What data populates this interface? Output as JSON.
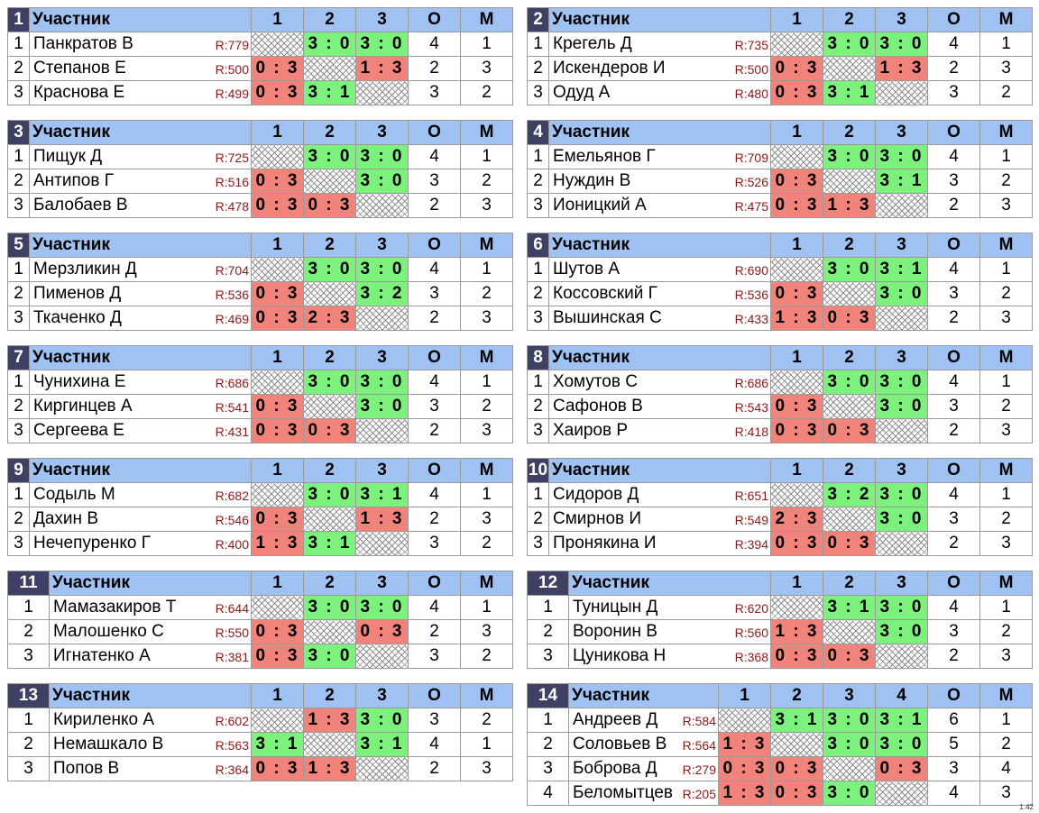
{
  "labels": {
    "participant": "Участник",
    "points": "О",
    "place": "М"
  },
  "version": "1.42",
  "groups": [
    {
      "num": "1",
      "cols": [
        "1",
        "2",
        "3"
      ],
      "rows": [
        {
          "idx": "1",
          "name": "Панкратов В",
          "rating": "R:779",
          "cells": [
            null,
            "3 : 0",
            "3 : 0"
          ],
          "points": "4",
          "place": "1"
        },
        {
          "idx": "2",
          "name": "Степанов Е",
          "rating": "R:500",
          "cells": [
            "0 : 3",
            null,
            "1 : 3"
          ],
          "points": "2",
          "place": "3"
        },
        {
          "idx": "3",
          "name": "Краснова Е",
          "rating": "R:499",
          "cells": [
            "0 : 3",
            "3 : 1",
            null
          ],
          "points": "3",
          "place": "2"
        }
      ]
    },
    {
      "num": "2",
      "cols": [
        "1",
        "2",
        "3"
      ],
      "rows": [
        {
          "idx": "1",
          "name": "Крегель Д",
          "rating": "R:735",
          "cells": [
            null,
            "3 : 0",
            "3 : 0"
          ],
          "points": "4",
          "place": "1"
        },
        {
          "idx": "2",
          "name": "Искендеров И",
          "rating": "R:500",
          "cells": [
            "0 : 3",
            null,
            "1 : 3"
          ],
          "points": "2",
          "place": "3"
        },
        {
          "idx": "3",
          "name": "Одуд А",
          "rating": "R:480",
          "cells": [
            "0 : 3",
            "3 : 1",
            null
          ],
          "points": "3",
          "place": "2"
        }
      ]
    },
    {
      "num": "3",
      "cols": [
        "1",
        "2",
        "3"
      ],
      "rows": [
        {
          "idx": "1",
          "name": "Пищук Д",
          "rating": "R:725",
          "cells": [
            null,
            "3 : 0",
            "3 : 0"
          ],
          "points": "4",
          "place": "1"
        },
        {
          "idx": "2",
          "name": "Антипов Г",
          "rating": "R:516",
          "cells": [
            "0 : 3",
            null,
            "3 : 0"
          ],
          "points": "3",
          "place": "2"
        },
        {
          "idx": "3",
          "name": "Балобаев В",
          "rating": "R:478",
          "cells": [
            "0 : 3",
            "0 : 3",
            null
          ],
          "points": "2",
          "place": "3"
        }
      ]
    },
    {
      "num": "4",
      "cols": [
        "1",
        "2",
        "3"
      ],
      "rows": [
        {
          "idx": "1",
          "name": "Емельянов Г",
          "rating": "R:709",
          "cells": [
            null,
            "3 : 0",
            "3 : 0"
          ],
          "points": "4",
          "place": "1"
        },
        {
          "idx": "2",
          "name": "Нуждин В",
          "rating": "R:526",
          "cells": [
            "0 : 3",
            null,
            "3 : 1"
          ],
          "points": "3",
          "place": "2"
        },
        {
          "idx": "3",
          "name": "Ионицкий А",
          "rating": "R:475",
          "cells": [
            "0 : 3",
            "1 : 3",
            null
          ],
          "points": "2",
          "place": "3"
        }
      ]
    },
    {
      "num": "5",
      "cols": [
        "1",
        "2",
        "3"
      ],
      "rows": [
        {
          "idx": "1",
          "name": "Мерзликин Д",
          "rating": "R:704",
          "cells": [
            null,
            "3 : 0",
            "3 : 0"
          ],
          "points": "4",
          "place": "1"
        },
        {
          "idx": "2",
          "name": "Пименов Д",
          "rating": "R:536",
          "cells": [
            "0 : 3",
            null,
            "3 : 2"
          ],
          "points": "3",
          "place": "2"
        },
        {
          "idx": "3",
          "name": "Ткаченко Д",
          "rating": "R:469",
          "cells": [
            "0 : 3",
            "2 : 3",
            null
          ],
          "points": "2",
          "place": "3"
        }
      ]
    },
    {
      "num": "6",
      "cols": [
        "1",
        "2",
        "3"
      ],
      "rows": [
        {
          "idx": "1",
          "name": "Шутов А",
          "rating": "R:690",
          "cells": [
            null,
            "3 : 0",
            "3 : 1"
          ],
          "points": "4",
          "place": "1"
        },
        {
          "idx": "2",
          "name": "Коссовский Г",
          "rating": "R:536",
          "cells": [
            "0 : 3",
            null,
            "3 : 0"
          ],
          "points": "3",
          "place": "2"
        },
        {
          "idx": "3",
          "name": "Вышинская С",
          "rating": "R:433",
          "cells": [
            "1 : 3",
            "0 : 3",
            null
          ],
          "points": "2",
          "place": "3"
        }
      ]
    },
    {
      "num": "7",
      "cols": [
        "1",
        "2",
        "3"
      ],
      "rows": [
        {
          "idx": "1",
          "name": "Чунихина Е",
          "rating": "R:686",
          "cells": [
            null,
            "3 : 0",
            "3 : 0"
          ],
          "points": "4",
          "place": "1"
        },
        {
          "idx": "2",
          "name": "Киргинцев А",
          "rating": "R:541",
          "cells": [
            "0 : 3",
            null,
            "3 : 0"
          ],
          "points": "3",
          "place": "2"
        },
        {
          "idx": "3",
          "name": "Сергеева Е",
          "rating": "R:431",
          "cells": [
            "0 : 3",
            "0 : 3",
            null
          ],
          "points": "2",
          "place": "3"
        }
      ]
    },
    {
      "num": "8",
      "cols": [
        "1",
        "2",
        "3"
      ],
      "rows": [
        {
          "idx": "1",
          "name": "Хомутов С",
          "rating": "R:686",
          "cells": [
            null,
            "3 : 0",
            "3 : 0"
          ],
          "points": "4",
          "place": "1"
        },
        {
          "idx": "2",
          "name": "Сафонов В",
          "rating": "R:543",
          "cells": [
            "0 : 3",
            null,
            "3 : 0"
          ],
          "points": "3",
          "place": "2"
        },
        {
          "idx": "3",
          "name": "Хаиров Р",
          "rating": "R:418",
          "cells": [
            "0 : 3",
            "0 : 3",
            null
          ],
          "points": "2",
          "place": "3"
        }
      ]
    },
    {
      "num": "9",
      "cols": [
        "1",
        "2",
        "3"
      ],
      "rows": [
        {
          "idx": "1",
          "name": "Содыль М",
          "rating": "R:682",
          "cells": [
            null,
            "3 : 0",
            "3 : 1"
          ],
          "points": "4",
          "place": "1"
        },
        {
          "idx": "2",
          "name": "Дахин В",
          "rating": "R:546",
          "cells": [
            "0 : 3",
            null,
            "1 : 3"
          ],
          "points": "2",
          "place": "3"
        },
        {
          "idx": "3",
          "name": "Нечепуренко Г",
          "rating": "R:400",
          "cells": [
            "1 : 3",
            "3 : 1",
            null
          ],
          "points": "3",
          "place": "2"
        }
      ]
    },
    {
      "num": "10",
      "cols": [
        "1",
        "2",
        "3"
      ],
      "rows": [
        {
          "idx": "1",
          "name": "Сидоров Д",
          "rating": "R:651",
          "cells": [
            null,
            "3 : 2",
            "3 : 0"
          ],
          "points": "4",
          "place": "1"
        },
        {
          "idx": "2",
          "name": "Смирнов И",
          "rating": "R:549",
          "cells": [
            "2 : 3",
            null,
            "3 : 0"
          ],
          "points": "3",
          "place": "2"
        },
        {
          "idx": "3",
          "name": "Пронякина И",
          "rating": "R:394",
          "cells": [
            "0 : 3",
            "0 : 3",
            null
          ],
          "points": "2",
          "place": "3"
        }
      ]
    },
    {
      "num": "11",
      "cols": [
        "1",
        "2",
        "3"
      ],
      "rows": [
        {
          "idx": "1",
          "name": "Мамазакиров Т",
          "rating": "R:644",
          "cells": [
            null,
            "3 : 0",
            "3 : 0"
          ],
          "points": "4",
          "place": "1"
        },
        {
          "idx": "2",
          "name": "Малошенко С",
          "rating": "R:550",
          "cells": [
            "0 : 3",
            null,
            "0 : 3"
          ],
          "points": "2",
          "place": "3"
        },
        {
          "idx": "3",
          "name": "Игнатенко А",
          "rating": "R:381",
          "cells": [
            "0 : 3",
            "3 : 0",
            null
          ],
          "points": "3",
          "place": "2"
        }
      ]
    },
    {
      "num": "12",
      "cols": [
        "1",
        "2",
        "3"
      ],
      "rows": [
        {
          "idx": "1",
          "name": "Туницын Д",
          "rating": "R:620",
          "cells": [
            null,
            "3 : 1",
            "3 : 0"
          ],
          "points": "4",
          "place": "1"
        },
        {
          "idx": "2",
          "name": "Воронин В",
          "rating": "R:560",
          "cells": [
            "1 : 3",
            null,
            "3 : 0"
          ],
          "points": "3",
          "place": "2"
        },
        {
          "idx": "3",
          "name": "Цуникова Н",
          "rating": "R:368",
          "cells": [
            "0 : 3",
            "0 : 3",
            null
          ],
          "points": "2",
          "place": "3"
        }
      ]
    },
    {
      "num": "13",
      "cols": [
        "1",
        "2",
        "3"
      ],
      "rows": [
        {
          "idx": "1",
          "name": "Кириленко А",
          "rating": "R:602",
          "cells": [
            null,
            "1 : 3",
            "3 : 0"
          ],
          "points": "3",
          "place": "2"
        },
        {
          "idx": "2",
          "name": "Немашкало В",
          "rating": "R:563",
          "cells": [
            "3 : 1",
            null,
            "3 : 1"
          ],
          "points": "4",
          "place": "1"
        },
        {
          "idx": "3",
          "name": "Попов В",
          "rating": "R:364",
          "cells": [
            "0 : 3",
            "1 : 3",
            null
          ],
          "points": "2",
          "place": "3"
        }
      ]
    },
    {
      "num": "14",
      "cols": [
        "1",
        "2",
        "3",
        "4"
      ],
      "rows": [
        {
          "idx": "1",
          "name": "Андреев Д",
          "rating": "R:584",
          "cells": [
            null,
            "3 : 1",
            "3 : 0",
            "3 : 1"
          ],
          "points": "6",
          "place": "1"
        },
        {
          "idx": "2",
          "name": "Соловьев В",
          "rating": "R:564",
          "cells": [
            "1 : 3",
            null,
            "3 : 0",
            "3 : 0"
          ],
          "points": "5",
          "place": "2"
        },
        {
          "idx": "3",
          "name": "Боброва Д",
          "rating": "R:279",
          "cells": [
            "0 : 3",
            "0 : 3",
            null,
            "0 : 3"
          ],
          "points": "3",
          "place": "4"
        },
        {
          "idx": "4",
          "name": "Беломытцев",
          "rating": "R:205",
          "cells": [
            "1 : 3",
            "0 : 3",
            "3 : 0",
            null
          ],
          "points": "4",
          "place": "3"
        }
      ]
    }
  ]
}
